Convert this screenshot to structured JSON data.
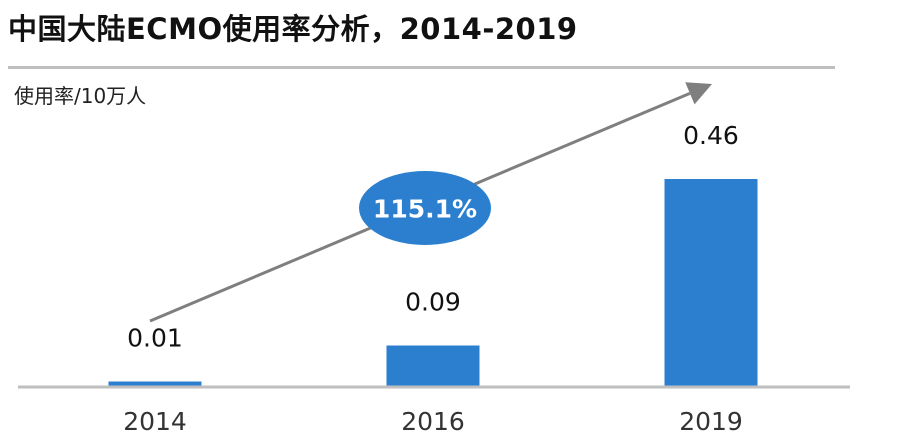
{
  "header": {
    "title": "中国大陆ECMO使用率分析，2014-2019",
    "unit": "使用率/10万人"
  },
  "chart_data": {
    "type": "bar",
    "title": "中国大陆ECMO使用率分析，2014-2019",
    "ylabel": "使用率/10万人",
    "xlabel": "",
    "categories": [
      "2014",
      "2016",
      "2019"
    ],
    "values": [
      0.01,
      0.09,
      0.46
    ],
    "value_labels": [
      "0.01",
      "0.09",
      "0.46"
    ],
    "ylim": [
      0,
      0.46
    ],
    "grid": false,
    "legend": "none",
    "annotation": {
      "text": "115.1%",
      "shape": "ellipse",
      "arrow": "from 2014 to 2019"
    },
    "colors": {
      "bar": "#2b7fce",
      "badge": "#2b7fce",
      "arrow": "#7f7f7f",
      "axis": "#bfbfbf"
    }
  }
}
